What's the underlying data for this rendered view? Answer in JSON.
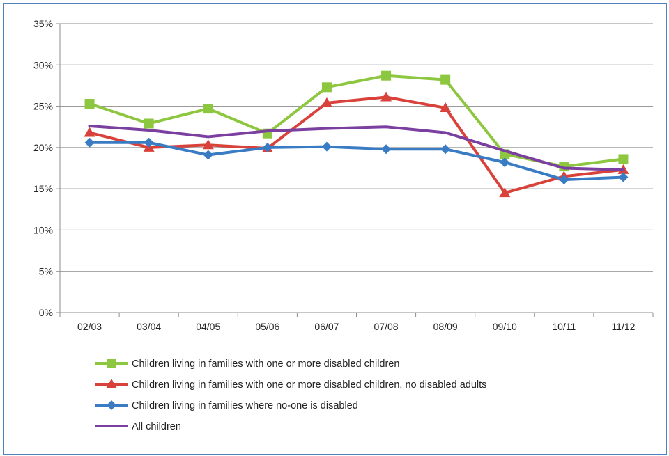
{
  "chart_data": {
    "type": "line",
    "categories": [
      "02/03",
      "03/04",
      "04/05",
      "05/06",
      "06/07",
      "07/08",
      "08/09",
      "09/10",
      "10/11",
      "11/12"
    ],
    "ylim": [
      0,
      35
    ],
    "yticks": [
      0,
      5,
      10,
      15,
      20,
      25,
      30,
      35
    ],
    "ytick_labels": [
      "0%",
      "5%",
      "10%",
      "15%",
      "20%",
      "25%",
      "30%",
      "35%"
    ],
    "grid": true,
    "legend_position": "bottom",
    "series": [
      {
        "name": "Children living in families with one or more disabled children",
        "color": "#8dc63f",
        "marker": "square",
        "values": [
          25.3,
          22.9,
          24.7,
          21.7,
          27.3,
          28.7,
          28.2,
          19.2,
          17.7,
          18.6
        ]
      },
      {
        "name": "Children living in families with one or more disabled children, no disabled adults",
        "color": "#d9423a",
        "marker": "triangle",
        "values": [
          21.8,
          20.0,
          20.3,
          19.9,
          25.4,
          26.1,
          24.8,
          14.5,
          16.5,
          17.3
        ]
      },
      {
        "name": "Children living in families where no-one is disabled",
        "color": "#3a7cc4",
        "marker": "diamond",
        "values": [
          20.6,
          20.6,
          19.1,
          20.0,
          20.1,
          19.8,
          19.8,
          18.2,
          16.1,
          16.4
        ]
      },
      {
        "name": "All children",
        "color": "#7b3fa0",
        "marker": "none",
        "values": [
          22.6,
          22.1,
          21.3,
          22.0,
          22.3,
          22.5,
          21.8,
          19.6,
          17.5,
          17.3
        ]
      }
    ]
  }
}
